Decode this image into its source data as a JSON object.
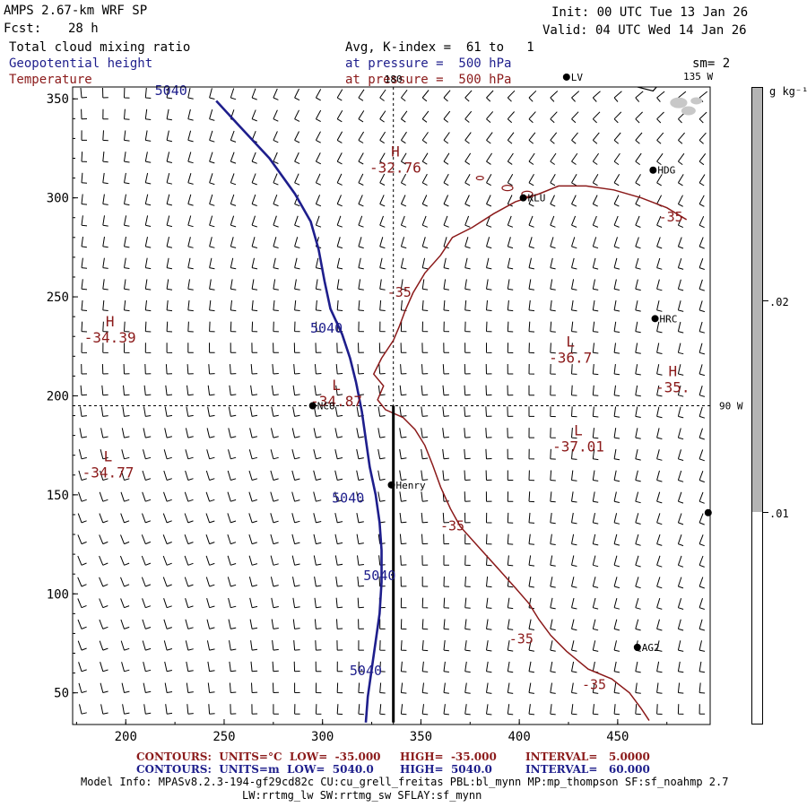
{
  "header": {
    "model": "AMPS 2.67-km WRF SP",
    "init": "Init: 00 UTC Tue 13 Jan 26",
    "fcst_label": "Fcst:",
    "fcst_value": "28 h",
    "valid": "Valid: 04 UTC Wed 14 Jan 26",
    "field1": "Total cloud mixing ratio",
    "field1_info": "Avg, K-index =  61 to   1",
    "field2": "Geopotential height",
    "field2_info": "at pressure =  500 hPa",
    "field3": "Temperature",
    "field3_info": "at pressure =  500 hPa",
    "sm": "sm= 2"
  },
  "colors": {
    "height_contour": "#1e1e8c",
    "temperature_contour": "#8b1a1a",
    "barb": "#000000",
    "cloud_fill": "#b4b4b4"
  },
  "colorbar": {
    "unit": "g kg⁻¹",
    "labels": [
      ".02",
      ".01"
    ],
    "fill_above": 0.01
  },
  "reference_lines": {
    "lon_label_top": "180",
    "lon_label_right": "135 W",
    "lat_label": "90 W"
  },
  "chart_data": {
    "type": "contour",
    "x_ticks": [
      200,
      250,
      300,
      350,
      400,
      450
    ],
    "y_ticks": [
      50,
      100,
      150,
      200,
      250,
      300,
      350
    ],
    "xlim": [
      173,
      497
    ],
    "ylim": [
      34,
      356
    ],
    "stations": [
      {
        "name": "NCO",
        "x": 295,
        "y": 195
      },
      {
        "name": "Henry",
        "x": 335,
        "y": 155
      },
      {
        "name": "KLU",
        "x": 402,
        "y": 300
      },
      {
        "name": "HDG",
        "x": 468,
        "y": 314
      },
      {
        "name": "HRC",
        "x": 469,
        "y": 239
      },
      {
        "name": "AG2",
        "x": 460,
        "y": 73
      },
      {
        "name": "LV",
        "x": 424,
        "y": 361
      },
      {
        "name": "",
        "x": 496,
        "y": 141
      }
    ],
    "highs_lows": [
      {
        "type": "H",
        "value": "-32.76",
        "x": 337,
        "y": 321
      },
      {
        "type": "H",
        "value": "-34.39",
        "x": 192,
        "y": 235
      },
      {
        "type": "L",
        "value": "-34.87",
        "x": 307,
        "y": 203
      },
      {
        "type": "L",
        "value": "-36.7",
        "x": 426,
        "y": 225
      },
      {
        "type": "H",
        "value": "-35.",
        "x": 478,
        "y": 210
      },
      {
        "type": "L",
        "value": "-37.01",
        "x": 430,
        "y": 180
      },
      {
        "type": "L",
        "value": "-34.77",
        "x": 191,
        "y": 167
      }
    ],
    "height_contour": {
      "level": 5040,
      "labels": [
        {
          "text": "5040",
          "x": 223,
          "y": 352
        },
        {
          "text": "5040",
          "x": 302,
          "y": 232
        },
        {
          "text": "5040",
          "x": 313,
          "y": 146
        },
        {
          "text": "5040",
          "x": 329,
          "y": 107
        },
        {
          "text": "5040",
          "x": 322,
          "y": 59
        }
      ],
      "points": [
        [
          246,
          349
        ],
        [
          258,
          336
        ],
        [
          273,
          320
        ],
        [
          286,
          302
        ],
        [
          294,
          288
        ],
        [
          298,
          274
        ],
        [
          301,
          258
        ],
        [
          304,
          244
        ],
        [
          310,
          231
        ],
        [
          314,
          219
        ],
        [
          317,
          207
        ],
        [
          320,
          192
        ],
        [
          322,
          178
        ],
        [
          324,
          164
        ],
        [
          327,
          150
        ],
        [
          329,
          136
        ],
        [
          330,
          122
        ],
        [
          330,
          106
        ],
        [
          329,
          90
        ],
        [
          327,
          76
        ],
        [
          325,
          62
        ],
        [
          323,
          48
        ],
        [
          322,
          35
        ]
      ]
    },
    "temperature_contour": {
      "level": -35,
      "labels": [
        {
          "text": "-35",
          "x": 477,
          "y": 288
        },
        {
          "text": "-35",
          "x": 339,
          "y": 250
        },
        {
          "text": "-35",
          "x": 366,
          "y": 132
        },
        {
          "text": "-35",
          "x": 401,
          "y": 75
        },
        {
          "text": "-35",
          "x": 438,
          "y": 52
        }
      ],
      "points": [
        [
          485,
          289
        ],
        [
          475,
          295
        ],
        [
          462,
          300
        ],
        [
          448,
          304
        ],
        [
          434,
          306
        ],
        [
          420,
          306
        ],
        [
          410,
          302
        ],
        [
          398,
          298
        ],
        [
          387,
          292
        ],
        [
          376,
          285
        ],
        [
          366,
          280
        ],
        [
          360,
          271
        ],
        [
          352,
          262
        ],
        [
          346,
          252
        ],
        [
          342,
          243
        ],
        [
          339,
          235
        ],
        [
          336,
          228
        ],
        [
          330,
          219
        ],
        [
          326,
          211
        ],
        [
          331,
          205
        ],
        [
          328,
          198
        ],
        [
          332,
          193
        ],
        [
          341,
          189
        ],
        [
          347,
          183
        ],
        [
          352,
          175
        ],
        [
          356,
          165
        ],
        [
          360,
          154
        ],
        [
          365,
          143
        ],
        [
          370,
          134
        ],
        [
          379,
          124
        ],
        [
          389,
          113
        ],
        [
          398,
          103
        ],
        [
          405,
          95
        ],
        [
          410,
          87
        ],
        [
          416,
          79
        ],
        [
          424,
          71
        ],
        [
          435,
          62
        ],
        [
          447,
          57
        ],
        [
          456,
          50
        ],
        [
          462,
          42
        ],
        [
          466,
          36
        ]
      ]
    },
    "map_border": {
      "points": [
        [
          455,
          364
        ],
        [
          460,
          356
        ],
        [
          468,
          354
        ],
        [
          475,
          362
        ]
      ]
    },
    "transect": {
      "points": [
        [
          336,
          35
        ],
        [
          336,
          195
        ]
      ]
    }
  },
  "footer": {
    "line1_left": "CONTOURS:  UNITS=°C  LOW=  -35.000",
    "line1_mid": "HIGH=  -35.000",
    "line1_right": "INTERVAL=   5.0000",
    "line2_left": "CONTOURS:  UNITS=m  LOW=  5040.0",
    "line2_mid": "HIGH=  5040.0",
    "line2_right": "INTERVAL=   60.000",
    "info1": "Model Info: MPASv8.2.3-194-gf29cd82c CU:cu_grell_freitas PBL:bl_mynn MP:mp_thompson SF:sf_noahmp 2.7",
    "info2": "LW:rrtmg_lw SW:rrtmg_sw SFLAY:sf_mynn"
  }
}
